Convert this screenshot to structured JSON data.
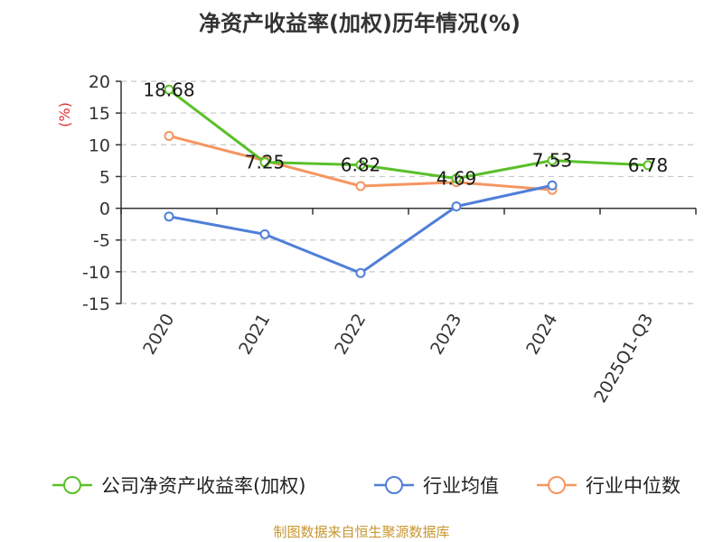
{
  "chart_data": {
    "type": "line",
    "title": "净资产收益率(加权)历年情况(%)",
    "ylabel": "(%)",
    "categories": [
      "2020",
      "2021",
      "2022",
      "2023",
      "2024",
      "2025Q1-Q3"
    ],
    "ylim": [
      -15,
      20
    ],
    "yticks": [
      "20",
      "15",
      "10",
      "5",
      "0",
      "-5",
      "-10",
      "-15"
    ],
    "grid": true,
    "legend_position": "bottom",
    "series": [
      {
        "name": "公司净资产收益率(加权)",
        "color": "#5ac02a",
        "values": [
          18.68,
          7.25,
          6.82,
          4.69,
          7.53,
          6.78
        ],
        "labels": [
          "18.68",
          "7.25",
          "6.82",
          "4.69",
          "7.53",
          "6.78"
        ]
      },
      {
        "name": "行业均值",
        "color": "#4f7fd8",
        "values": [
          -1.3,
          -4.1,
          -10.2,
          0.3,
          3.6,
          null
        ]
      },
      {
        "name": "行业中位数",
        "color": "#f59660",
        "values": [
          11.4,
          7.5,
          3.5,
          4.1,
          2.9,
          null
        ]
      }
    ]
  },
  "source_text": "制图数据来自恒生聚源数据库"
}
